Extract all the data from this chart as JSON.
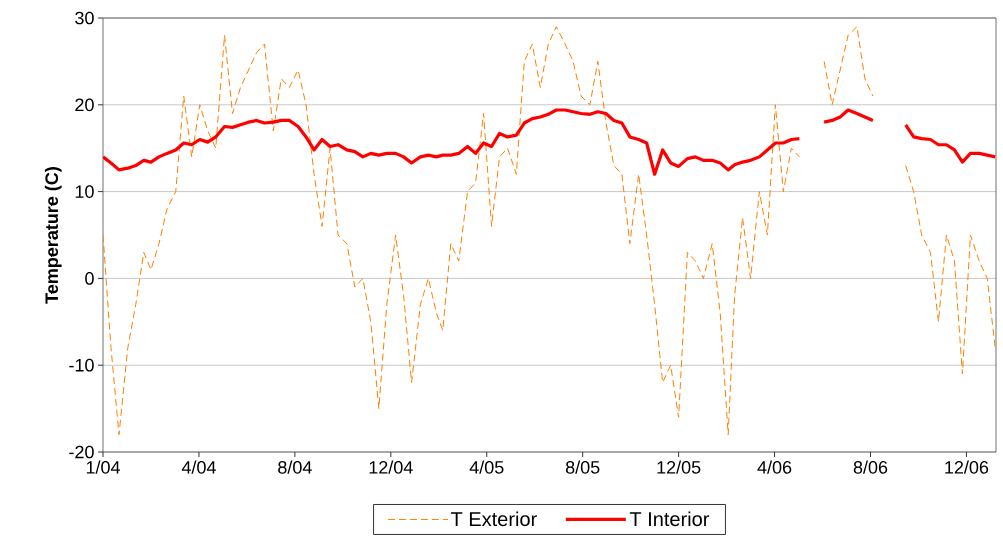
{
  "chart_data": {
    "type": "line",
    "ylabel": "Temperature (C)",
    "x": [
      "2004-01-01",
      "2004-01-11",
      "2004-01-21",
      "2004-02-01",
      "2004-02-11",
      "2004-02-21",
      "2004-03-01",
      "2004-03-11",
      "2004-03-21",
      "2004-04-01",
      "2004-04-11",
      "2004-04-21",
      "2004-05-01",
      "2004-05-11",
      "2004-05-21",
      "2004-06-01",
      "2004-06-11",
      "2004-06-21",
      "2004-07-01",
      "2004-07-11",
      "2004-07-21",
      "2004-08-01",
      "2004-08-11",
      "2004-08-21",
      "2004-09-01",
      "2004-09-11",
      "2004-09-21",
      "2004-10-01",
      "2004-10-11",
      "2004-10-21",
      "2004-11-01",
      "2004-11-11",
      "2004-11-21",
      "2004-12-01",
      "2004-12-11",
      "2004-12-21",
      "2005-01-01",
      "2005-01-11",
      "2005-01-21",
      "2005-02-01",
      "2005-02-11",
      "2005-02-21",
      "2005-03-01",
      "2005-03-11",
      "2005-03-21",
      "2005-04-01",
      "2005-04-11",
      "2005-04-21",
      "2005-05-01",
      "2005-05-11",
      "2005-05-21",
      "2005-06-01",
      "2005-06-11",
      "2005-06-21",
      "2005-07-01",
      "2005-07-11",
      "2005-07-21",
      "2005-08-01",
      "2005-08-11",
      "2005-08-21",
      "2005-09-01",
      "2005-09-11",
      "2005-09-21",
      "2005-10-01",
      "2005-10-11",
      "2005-10-21",
      "2005-11-01",
      "2005-11-11",
      "2005-11-21",
      "2005-12-01",
      "2005-12-11",
      "2005-12-21",
      "2006-01-01",
      "2006-01-11",
      "2006-01-21",
      "2006-02-01",
      "2006-02-11",
      "2006-02-21",
      "2006-03-01",
      "2006-03-11",
      "2006-03-21",
      "2006-04-01",
      "2006-04-11",
      "2006-04-21",
      "2006-05-01",
      "2006-05-11",
      "2006-05-21",
      "2006-06-01",
      "2006-06-11",
      "2006-06-21",
      "2006-07-01",
      "2006-07-11",
      "2006-07-21",
      "2006-08-01",
      "2006-08-11",
      "2006-08-21",
      "2006-09-01",
      "2006-09-11",
      "2006-09-21",
      "2006-10-01",
      "2006-10-11",
      "2006-10-21",
      "2006-11-01",
      "2006-11-11",
      "2006-11-21",
      "2006-12-01",
      "2006-12-11",
      "2006-12-21",
      "2007-01-01",
      "2007-01-11",
      "2007-01-21"
    ],
    "series": [
      {
        "name": "T Exterior",
        "color": "#ff8000",
        "line_style": "dashed",
        "values": [
          5,
          -8,
          -18,
          -8,
          -3,
          3,
          1,
          4,
          8,
          10,
          21,
          14,
          20,
          17,
          15,
          28,
          19,
          22,
          24,
          26,
          27,
          17,
          23,
          22,
          24,
          20,
          12,
          6,
          15,
          5,
          4,
          -1,
          0,
          -5,
          -15,
          -3,
          5,
          -2,
          -12,
          -3,
          0,
          -4,
          -6,
          4,
          2,
          10,
          11,
          19,
          6,
          14,
          15,
          12,
          25,
          27,
          22,
          27,
          29,
          27,
          25,
          21,
          20,
          25,
          18,
          13,
          12,
          4,
          12,
          5,
          -3,
          -12,
          -10,
          -16,
          3,
          2,
          0,
          4,
          -4,
          -18,
          -2,
          7,
          0,
          10,
          5,
          20,
          10,
          15,
          14,
          null,
          null,
          25,
          20,
          24,
          28,
          29,
          23,
          21,
          null,
          null,
          null,
          13,
          10,
          5,
          3,
          -5,
          5,
          2,
          -11,
          5,
          2,
          0,
          -8
        ]
      },
      {
        "name": "T Interior",
        "color": "#ff0000",
        "line_style": "solid",
        "values": [
          14,
          13.3,
          12.5,
          12.7,
          13,
          13.6,
          13.4,
          14,
          14.4,
          14.8,
          15.6,
          15.4,
          16,
          15.7,
          16.3,
          17.5,
          17.4,
          17.7,
          18,
          18.2,
          17.9,
          18,
          18.2,
          18.2,
          17.5,
          16.3,
          14.8,
          16,
          15.2,
          15.4,
          14.8,
          14.6,
          14,
          14.4,
          14.2,
          14.4,
          14.4,
          14,
          13.3,
          14,
          14.2,
          14,
          14.2,
          14.2,
          14.4,
          15.2,
          14.4,
          15.6,
          15.2,
          16.7,
          16.3,
          16.5,
          17.9,
          18.4,
          18.6,
          18.9,
          19.4,
          19.4,
          19.2,
          19,
          18.9,
          19.2,
          19,
          18.2,
          17.9,
          16.3,
          16,
          15.6,
          12,
          14.8,
          13.3,
          12.9,
          13.8,
          14,
          13.6,
          13.6,
          13.3,
          12.5,
          13.1,
          13.4,
          13.6,
          14,
          14.8,
          15.6,
          15.6,
          16,
          16.1,
          null,
          null,
          18,
          18.2,
          18.6,
          19.4,
          19,
          18.6,
          18.2,
          null,
          null,
          null,
          17.7,
          16.3,
          16.1,
          16,
          15.4,
          15.4,
          14.8,
          13.4,
          14.4,
          14.4,
          14.2,
          14
        ]
      }
    ],
    "xlim": [
      "2004-01-01",
      "2007-01-22"
    ],
    "xticks": [
      {
        "value": "2004-01-01",
        "label": "1/04"
      },
      {
        "value": "2004-04-30",
        "label": "4/04"
      },
      {
        "value": "2004-08-28",
        "label": "8/04"
      },
      {
        "value": "2004-12-26",
        "label": "12/04"
      },
      {
        "value": "2005-04-25",
        "label": "4/05"
      },
      {
        "value": "2005-08-23",
        "label": "8/05"
      },
      {
        "value": "2005-12-21",
        "label": "12/05"
      },
      {
        "value": "2006-04-20",
        "label": "4/06"
      },
      {
        "value": "2006-08-18",
        "label": "8/06"
      },
      {
        "value": "2006-12-16",
        "label": "12/06"
      }
    ],
    "ylim": [
      -20,
      30
    ],
    "yticks": [
      -20,
      -10,
      0,
      10,
      20,
      30
    ],
    "grid": "y",
    "legend": "bottom",
    "marker": "none"
  }
}
